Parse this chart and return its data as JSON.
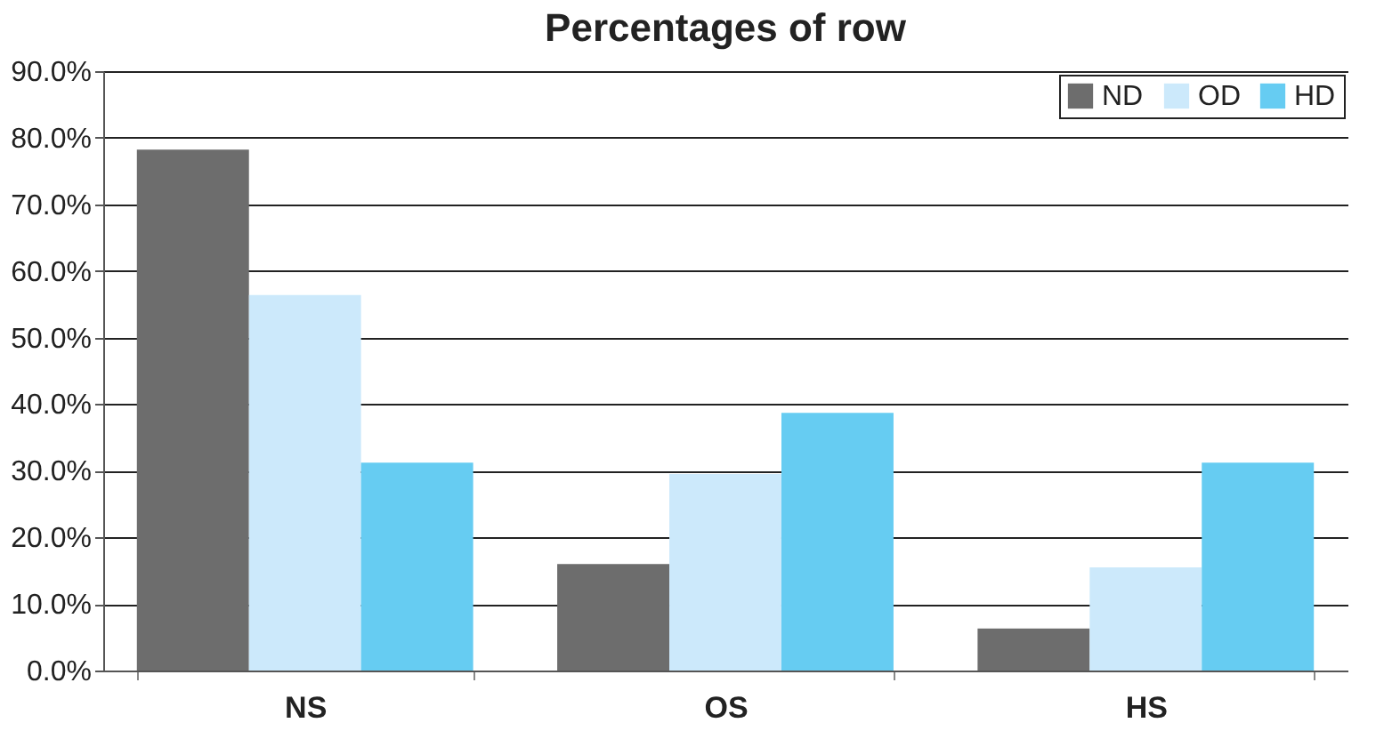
{
  "chart_data": {
    "type": "bar",
    "title": "Percentages of row",
    "categories": [
      "NS",
      "OS",
      "HS"
    ],
    "series": [
      {
        "name": "ND",
        "color": "#6d6d6d",
        "values": [
          78.2,
          16.0,
          6.3
        ]
      },
      {
        "name": "OD",
        "color": "#cce9fb",
        "values": [
          56.4,
          29.5,
          15.5
        ]
      },
      {
        "name": "HD",
        "color": "#66ccf2",
        "values": [
          31.2,
          38.7,
          31.2
        ]
      }
    ],
    "ylim": [
      0,
      90
    ],
    "yticks": [
      {
        "value": 0,
        "label": "0.0%"
      },
      {
        "value": 10,
        "label": "10.0%"
      },
      {
        "value": 20,
        "label": "20.0%"
      },
      {
        "value": 30,
        "label": "30.0%"
      },
      {
        "value": 40,
        "label": "40.0%"
      },
      {
        "value": 50,
        "label": "50.0%"
      },
      {
        "value": 60,
        "label": "60.0%"
      },
      {
        "value": 70,
        "label": "70.0%"
      },
      {
        "value": 80,
        "label": "80.0%"
      },
      {
        "value": 90,
        "label": "90.0%"
      }
    ],
    "grid": "y",
    "legend": "top right"
  }
}
